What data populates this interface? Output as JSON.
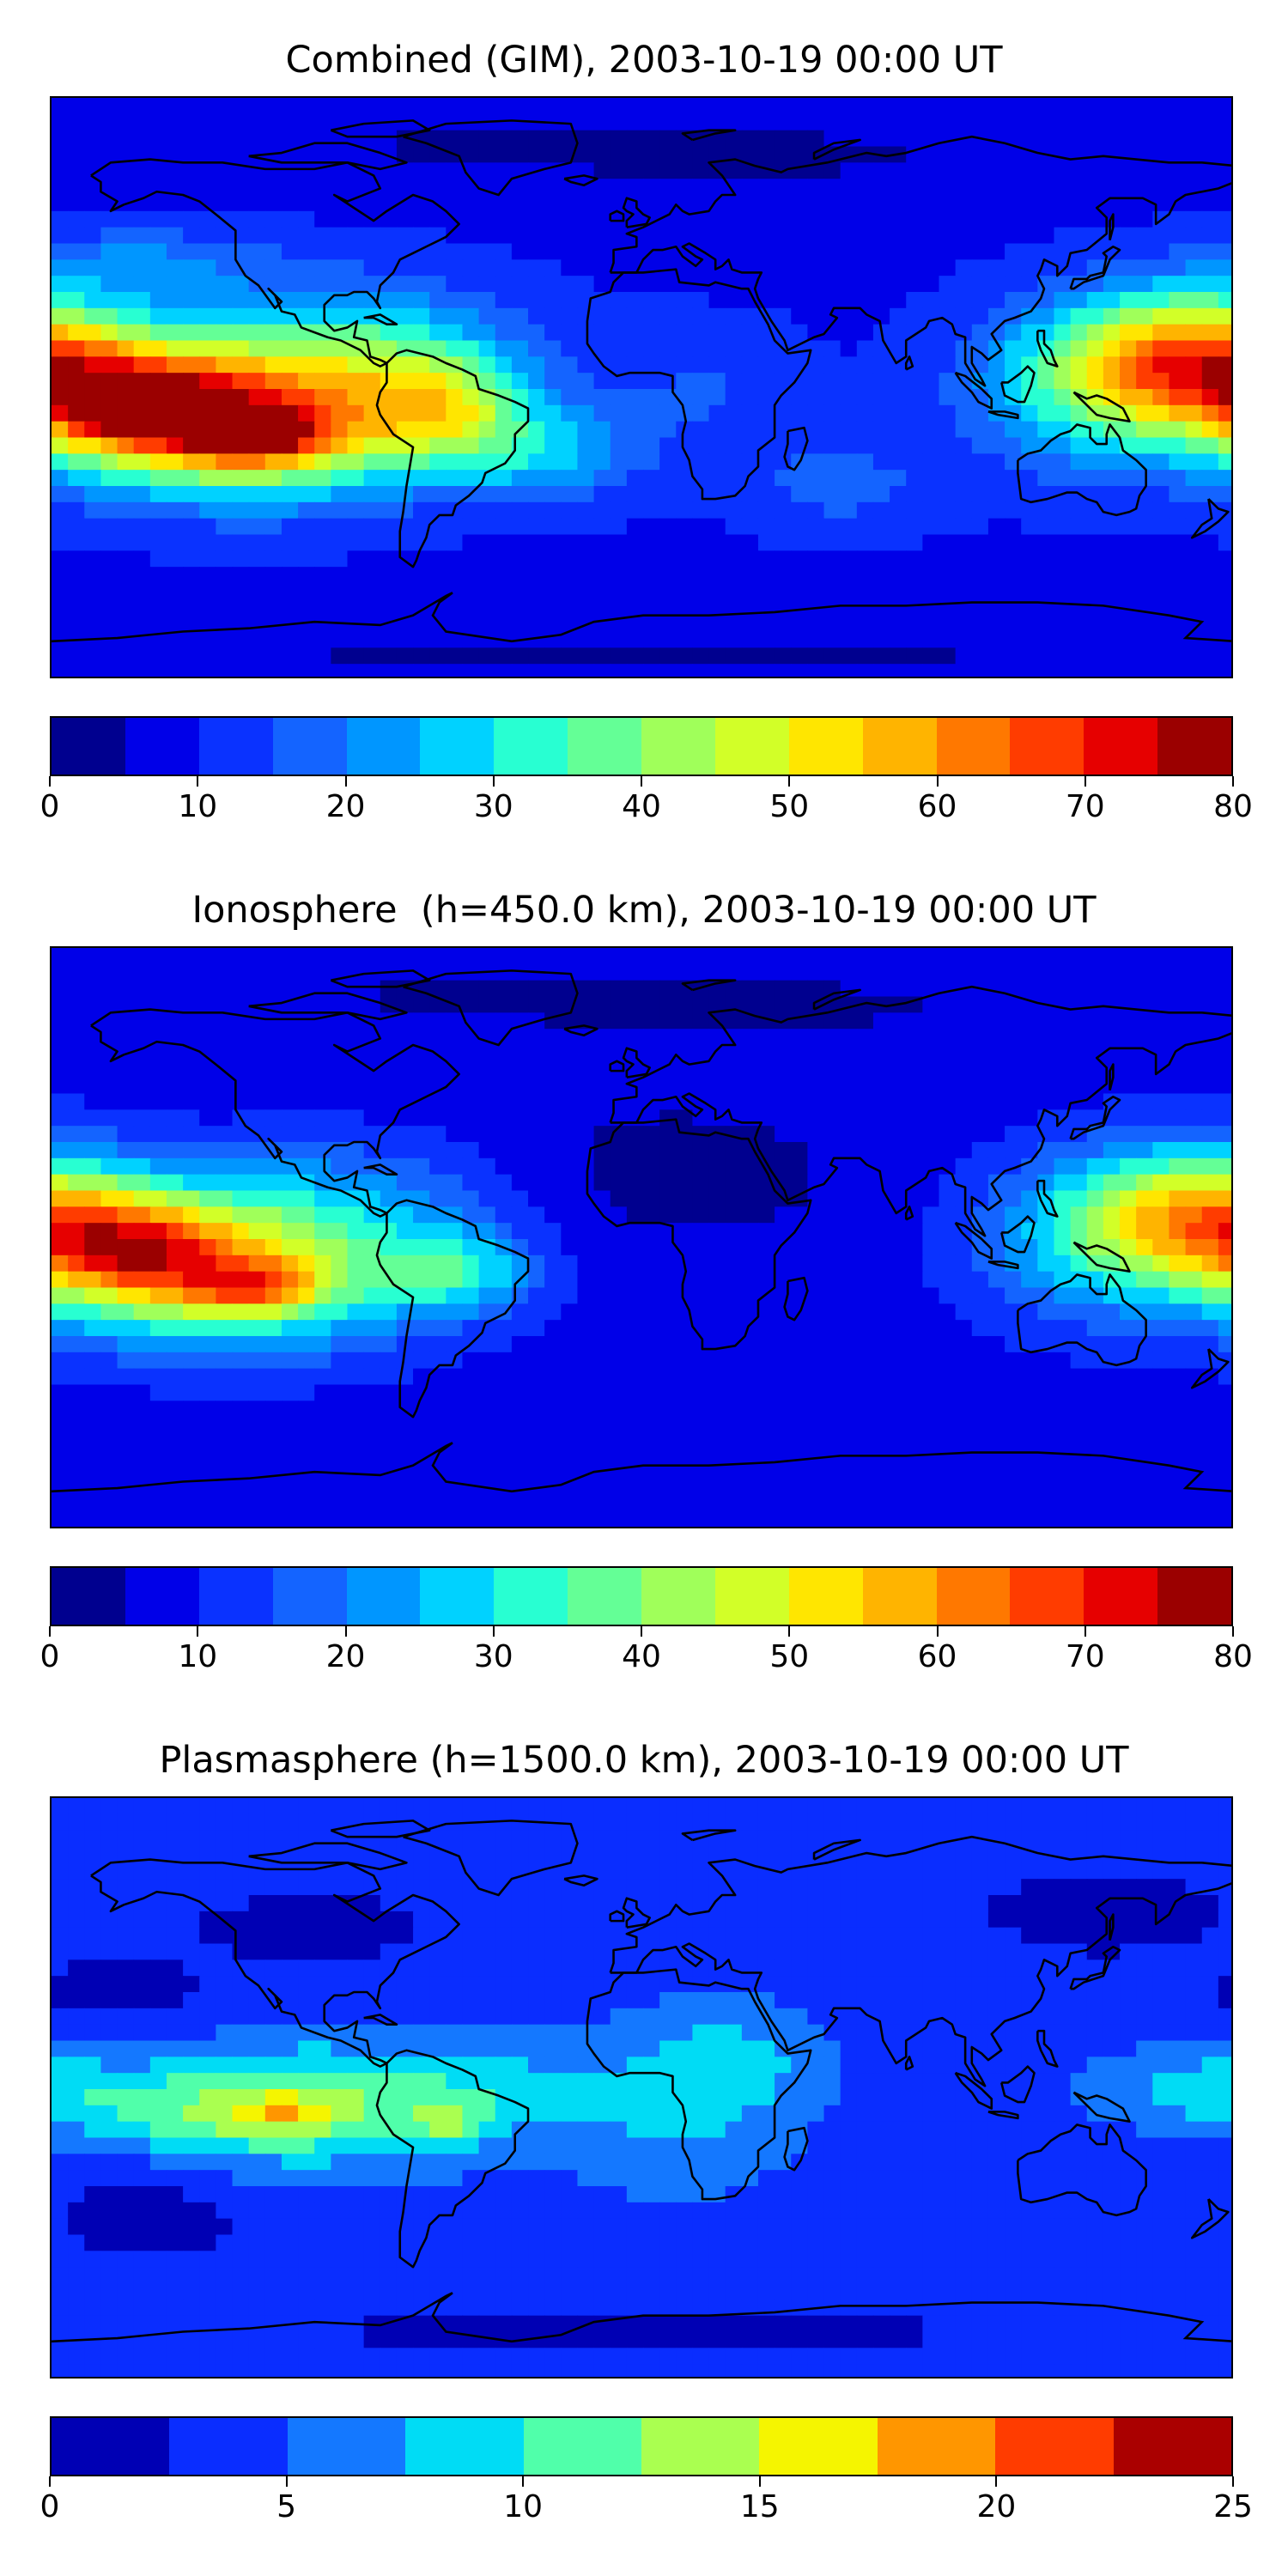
{
  "panels": [
    {
      "title": "Combined (GIM), 2003-10-19 00:00 UT",
      "colorbar": {
        "levels": [
          0,
          5,
          10,
          15,
          20,
          25,
          30,
          35,
          40,
          45,
          50,
          55,
          60,
          65,
          70,
          75,
          80
        ],
        "colors": [
          "#00008f",
          "#0000e8",
          "#0a32ff",
          "#1464ff",
          "#0096ff",
          "#00d2ff",
          "#28ffd2",
          "#64ff96",
          "#a0ff5a",
          "#d2ff28",
          "#ffe600",
          "#ffb400",
          "#ff7800",
          "#ff3c00",
          "#e60000",
          "#9b0000"
        ],
        "tick_labels": [
          "0",
          "10",
          "20",
          "30",
          "40",
          "50",
          "60",
          "70",
          "80"
        ],
        "tick_values": [
          0,
          10,
          20,
          30,
          40,
          50,
          60,
          70,
          80
        ]
      }
    },
    {
      "title": "Ionosphere  (h=450.0 km), 2003-10-19 00:00 UT",
      "colorbar": {
        "levels": [
          0,
          5,
          10,
          15,
          20,
          25,
          30,
          35,
          40,
          45,
          50,
          55,
          60,
          65,
          70,
          75,
          80
        ],
        "colors": [
          "#00008f",
          "#0000e8",
          "#0a32ff",
          "#1464ff",
          "#0096ff",
          "#00d2ff",
          "#28ffd2",
          "#64ff96",
          "#a0ff5a",
          "#d2ff28",
          "#ffe600",
          "#ffb400",
          "#ff7800",
          "#ff3c00",
          "#e60000",
          "#9b0000"
        ],
        "tick_labels": [
          "0",
          "10",
          "20",
          "30",
          "40",
          "50",
          "60",
          "70",
          "80"
        ],
        "tick_values": [
          0,
          10,
          20,
          30,
          40,
          50,
          60,
          70,
          80
        ]
      }
    },
    {
      "title": "Plasmasphere (h=1500.0 km), 2003-10-19 00:00 UT",
      "colorbar": {
        "levels": [
          0,
          2.5,
          5,
          7.5,
          10,
          12.5,
          15,
          17.5,
          20,
          22.5,
          25
        ],
        "colors": [
          "#0000b4",
          "#0a2dff",
          "#1478ff",
          "#00dcf5",
          "#50ffaa",
          "#aaff50",
          "#f5f500",
          "#ff9600",
          "#ff3c00",
          "#aa0000"
        ],
        "tick_labels": [
          "0",
          "5",
          "10",
          "15",
          "20",
          "25"
        ],
        "tick_values": [
          0,
          5,
          10,
          15,
          20,
          25
        ]
      }
    }
  ]
}
